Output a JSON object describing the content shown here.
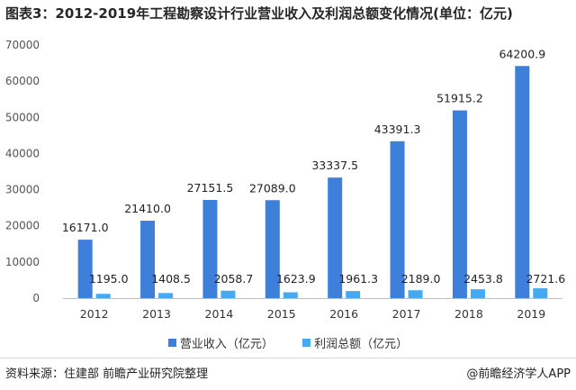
{
  "title": "图表3：2012-2019年工程勘察设计行业营业收入及利润总额变化情况(单位：亿元)",
  "chart_data": {
    "type": "bar",
    "categories": [
      "2012",
      "2013",
      "2014",
      "2015",
      "2016",
      "2017",
      "2018",
      "2019"
    ],
    "series": [
      {
        "name": "营业收入（亿元）",
        "color": "#3e7fd9",
        "values": [
          16171.0,
          21410.0,
          27151.5,
          27089.0,
          33337.5,
          43391.3,
          51915.2,
          64200.9
        ],
        "labels": [
          "16171.0",
          "21410.0",
          "27151.5",
          "27089.0",
          "33337.5",
          "43391.3",
          "51915.2",
          "64200.9"
        ]
      },
      {
        "name": "利润总额（亿元）",
        "color": "#45aaf0",
        "values": [
          1195.0,
          1408.5,
          2058.7,
          1623.9,
          1961.3,
          2189.0,
          2453.8,
          2721.6
        ],
        "labels": [
          "1195.0",
          "1408.5",
          "2058.7",
          "1623.9",
          "1961.3",
          "2189.0",
          "2453.8",
          "2721.6"
        ]
      }
    ],
    "ylim": [
      0,
      70000
    ],
    "yticks": [
      "0",
      "10000",
      "20000",
      "30000",
      "40000",
      "50000",
      "60000",
      "70000"
    ],
    "grid": false,
    "legend_position": "bottom"
  },
  "footer": {
    "source": "资料来源：住建部 前瞻产业研究院整理",
    "brand": "@前瞻经济学人APP"
  }
}
